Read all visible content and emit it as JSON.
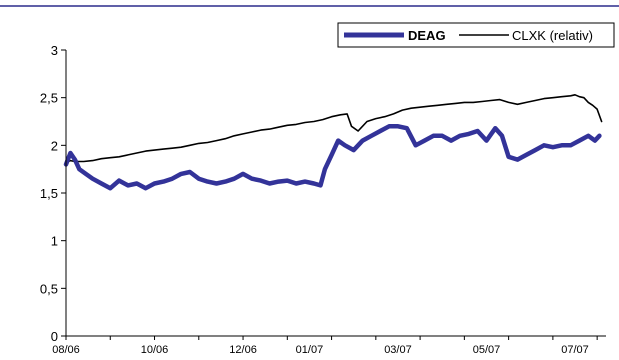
{
  "chart_data": {
    "type": "line",
    "title": "",
    "xlabel": "",
    "ylabel": "",
    "ylim": [
      0,
      3
    ],
    "y_ticks": [
      0,
      0.5,
      1,
      1.5,
      2,
      2.5,
      3
    ],
    "y_tick_labels": [
      "0",
      "0,5",
      "1",
      "1,5",
      "2",
      "2,5",
      "3"
    ],
    "x_ticks": [
      "08/06",
      "10/06",
      "12/06",
      "01/07",
      "03/07",
      "05/07",
      "07/07"
    ],
    "x_tick_values": [
      0,
      2,
      4,
      5.5,
      7.5,
      9.5,
      11.5
    ],
    "xlim": [
      0,
      12.2
    ],
    "grid": false,
    "legend_position": "top-right",
    "colors": {
      "DEAG": "#333399",
      "CLXK": "#000000",
      "accent": "#2b2b8c"
    },
    "series": [
      {
        "name": "DEAG",
        "bold": true,
        "x": [
          0,
          0.1,
          0.2,
          0.3,
          0.45,
          0.6,
          0.8,
          1.0,
          1.2,
          1.4,
          1.6,
          1.8,
          2.0,
          2.2,
          2.4,
          2.6,
          2.8,
          3.0,
          3.2,
          3.4,
          3.6,
          3.8,
          4.0,
          4.2,
          4.4,
          4.6,
          4.8,
          5.0,
          5.2,
          5.4,
          5.6,
          5.75,
          5.85,
          6.0,
          6.15,
          6.3,
          6.5,
          6.7,
          6.9,
          7.1,
          7.3,
          7.5,
          7.7,
          7.9,
          8.1,
          8.3,
          8.5,
          8.7,
          8.9,
          9.1,
          9.3,
          9.5,
          9.7,
          9.85,
          10.0,
          10.2,
          10.4,
          10.6,
          10.8,
          11.0,
          11.2,
          11.4,
          11.6,
          11.8,
          11.95,
          12.05
        ],
        "values": [
          1.8,
          1.92,
          1.85,
          1.75,
          1.7,
          1.65,
          1.6,
          1.55,
          1.63,
          1.58,
          1.6,
          1.55,
          1.6,
          1.62,
          1.65,
          1.7,
          1.72,
          1.65,
          1.62,
          1.6,
          1.62,
          1.65,
          1.7,
          1.65,
          1.63,
          1.6,
          1.62,
          1.63,
          1.6,
          1.62,
          1.6,
          1.58,
          1.75,
          1.9,
          2.05,
          2.0,
          1.95,
          2.05,
          2.1,
          2.15,
          2.2,
          2.2,
          2.18,
          2.0,
          2.05,
          2.1,
          2.1,
          2.05,
          2.1,
          2.12,
          2.15,
          2.05,
          2.18,
          2.1,
          1.88,
          1.85,
          1.9,
          1.95,
          2.0,
          1.98,
          2.0,
          2.0,
          2.05,
          2.1,
          2.05,
          2.1
        ]
      },
      {
        "name": "CLXK (relativ)",
        "bold": false,
        "x": [
          0,
          0.1,
          0.2,
          0.4,
          0.6,
          0.8,
          1.0,
          1.2,
          1.4,
          1.6,
          1.8,
          2.0,
          2.2,
          2.4,
          2.6,
          2.8,
          3.0,
          3.2,
          3.4,
          3.6,
          3.8,
          4.0,
          4.2,
          4.4,
          4.6,
          4.8,
          5.0,
          5.2,
          5.4,
          5.6,
          5.8,
          6.0,
          6.2,
          6.35,
          6.45,
          6.6,
          6.8,
          7.0,
          7.2,
          7.4,
          7.6,
          7.8,
          8.0,
          8.2,
          8.4,
          8.6,
          8.8,
          9.0,
          9.2,
          9.4,
          9.6,
          9.8,
          10.0,
          10.2,
          10.4,
          10.6,
          10.8,
          11.0,
          11.2,
          11.4,
          11.5,
          11.6,
          11.7,
          11.8,
          11.9,
          12.0,
          12.1
        ],
        "values": [
          1.82,
          1.84,
          1.83,
          1.83,
          1.84,
          1.86,
          1.87,
          1.88,
          1.9,
          1.92,
          1.94,
          1.95,
          1.96,
          1.97,
          1.98,
          2.0,
          2.02,
          2.03,
          2.05,
          2.07,
          2.1,
          2.12,
          2.14,
          2.16,
          2.17,
          2.19,
          2.21,
          2.22,
          2.24,
          2.25,
          2.27,
          2.3,
          2.32,
          2.33,
          2.2,
          2.15,
          2.25,
          2.28,
          2.3,
          2.33,
          2.37,
          2.39,
          2.4,
          2.41,
          2.42,
          2.43,
          2.44,
          2.45,
          2.45,
          2.46,
          2.47,
          2.48,
          2.45,
          2.43,
          2.45,
          2.47,
          2.49,
          2.5,
          2.51,
          2.52,
          2.53,
          2.51,
          2.5,
          2.45,
          2.42,
          2.38,
          2.25
        ]
      }
    ]
  }
}
